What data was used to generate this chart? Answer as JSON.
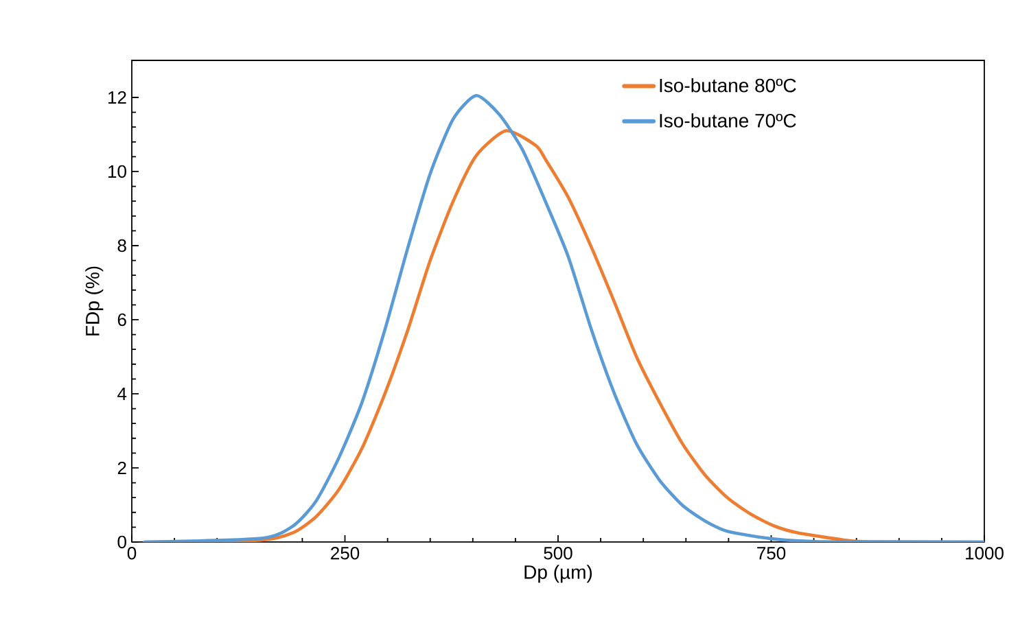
{
  "chart_data": {
    "type": "line",
    "xlabel": "Dp (µm)",
    "ylabel": "FDp (%)",
    "xlim": [
      0,
      1000
    ],
    "ylim": [
      0,
      13
    ],
    "xticks": [
      0,
      250,
      500,
      750,
      1000
    ],
    "yticks": [
      0,
      2,
      4,
      6,
      8,
      10,
      12
    ],
    "grid": false,
    "legend": "top right",
    "marker": "none",
    "line_style": "solid",
    "series": [
      {
        "name": "Iso-butane 80ºC",
        "color": "#ed7d31",
        "x": [
          15,
          152,
          189,
          216,
          243,
          270,
          297,
          324,
          350,
          377,
          404,
          439,
          474,
          486,
          512,
          539,
          566,
          592,
          619,
          646,
          673,
          700,
          727,
          754,
          781,
          834,
          861,
          1000
        ],
        "values": [
          0,
          0.05,
          0.25,
          0.68,
          1.42,
          2.53,
          4.01,
          5.74,
          7.6,
          9.2,
          10.43,
          11.1,
          10.7,
          10.3,
          9.3,
          7.96,
          6.48,
          5.0,
          3.77,
          2.65,
          1.79,
          1.17,
          0.74,
          0.43,
          0.25,
          0.06,
          0.01,
          0
        ]
      },
      {
        "name": "Iso-butane 70ºC",
        "color": "#5b9bd5",
        "x": [
          15,
          152,
          189,
          216,
          243,
          270,
          297,
          324,
          350,
          377,
          404,
          431,
          458,
          485,
          512,
          539,
          566,
          592,
          619,
          646,
          673,
          700,
          754,
          808,
          1000
        ],
        "values": [
          0,
          0.1,
          0.43,
          1.1,
          2.28,
          3.77,
          5.74,
          7.96,
          9.94,
          11.42,
          12.05,
          11.54,
          10.6,
          9.2,
          7.7,
          5.74,
          4.01,
          2.65,
          1.67,
          0.99,
          0.56,
          0.28,
          0.08,
          0.01,
          0
        ]
      }
    ]
  }
}
